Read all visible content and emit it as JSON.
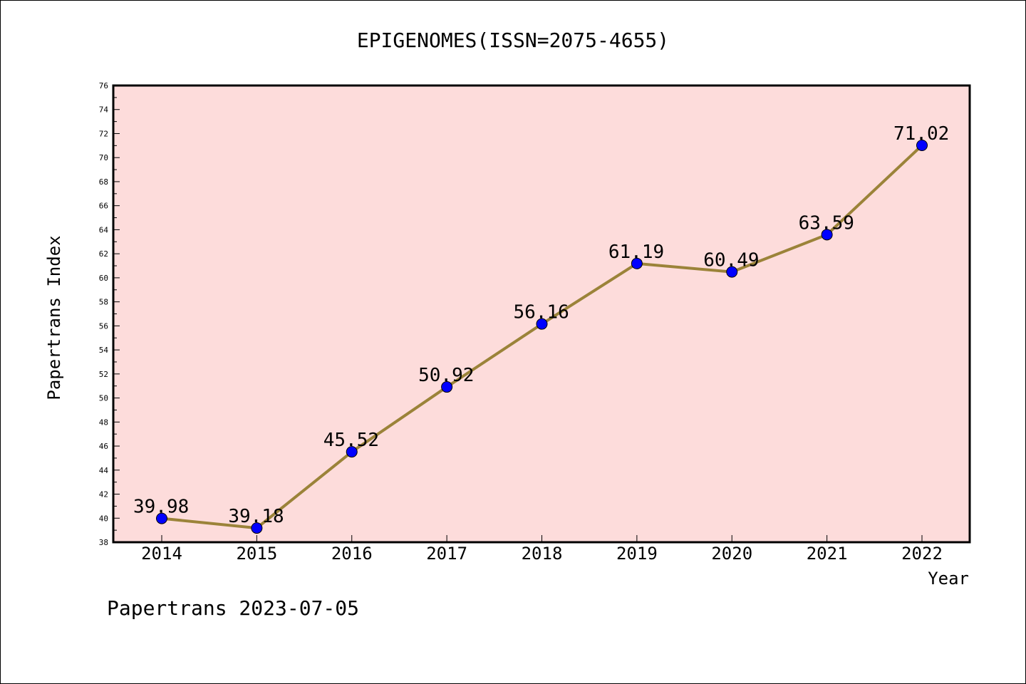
{
  "chart_data": {
    "type": "line",
    "title": "EPIGENOMES(ISSN=2075-4655)",
    "xlabel": "Year",
    "ylabel": "Papertrans Index",
    "categories": [
      "2014",
      "2015",
      "2016",
      "2017",
      "2018",
      "2019",
      "2020",
      "2021",
      "2022"
    ],
    "values": [
      39.98,
      39.18,
      45.52,
      50.92,
      56.16,
      61.19,
      60.49,
      63.59,
      71.02
    ],
    "data_labels": [
      "39.98",
      "39.18",
      "45.52",
      "50.92",
      "56.16",
      "61.19",
      "60.49",
      "63.59",
      "71.02"
    ],
    "ylim": [
      38,
      76
    ],
    "yticks": [
      38,
      40,
      42,
      44,
      46,
      48,
      50,
      52,
      54,
      56,
      58,
      60,
      62,
      64,
      66,
      68,
      70,
      72,
      74,
      76
    ],
    "plot_background": "#fddcdb",
    "line_color": "#9b8339",
    "marker_color": "#0000ff",
    "grid": false,
    "legend": "none"
  },
  "footer": "Papertrans 2023-07-05"
}
